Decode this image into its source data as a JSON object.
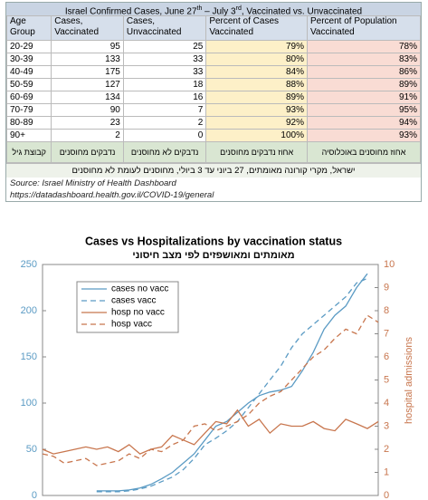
{
  "table": {
    "title": [
      "Israel Confirmed Cases, June 27",
      "th",
      " – July 3",
      "rd",
      ", Vaccinated vs. Unvaccinated"
    ],
    "header": [
      "Age Group",
      "Cases, Vaccinated",
      "Cases, Unvaccinated",
      "Percent of Cases Vaccinated",
      "Percent of Population Vaccinated"
    ],
    "rows": [
      [
        "20-29",
        "95",
        "25",
        "79%",
        "78%"
      ],
      [
        "30-39",
        "133",
        "33",
        "80%",
        "83%"
      ],
      [
        "40-49",
        "175",
        "33",
        "84%",
        "86%"
      ],
      [
        "50-59",
        "127",
        "18",
        "88%",
        "89%"
      ],
      [
        "60-69",
        "134",
        "16",
        "89%",
        "91%"
      ],
      [
        "70-79",
        "90",
        "7",
        "93%",
        "95%"
      ],
      [
        "80-89",
        "23",
        "2",
        "92%",
        "94%"
      ],
      [
        "90+",
        "2",
        "0",
        "100%",
        "93%"
      ]
    ],
    "hebrew_header": [
      "קבוצת גיל",
      "נדבקים מחוסנים",
      "נדבקים לא מחוסנים",
      "אחוז נדבקים מחוסנים",
      "אחוז מחוסנים באוכלוסיה"
    ],
    "hebrew_note": "ישראל, מקרי קורונה מאומתים, 27 ביוני עד 3 ביולי, מחוסנים לעומת לא מחוסנים",
    "source": "Source: Israel Ministry of Health Dashboard",
    "url": "https://datadashboard.health.gov.il/COVID-19/general"
  },
  "chart_data": {
    "type": "line",
    "title": "Cases vs Hospitalizations by vaccination status",
    "subtitle": "מאומתים ומאושפזים לפי מצב חיסוני",
    "y2label": "hospital admissions",
    "legend": "upper left",
    "grid": false,
    "ylim": [
      0,
      250
    ],
    "yticks": [
      0,
      50,
      100,
      150,
      200,
      250
    ],
    "y2lim": [
      0,
      10
    ],
    "y2ticks": [
      0,
      1,
      2,
      3,
      4,
      5,
      6,
      7,
      8,
      9,
      10
    ],
    "series": [
      {
        "name": "cases no vacc",
        "color": "#5b9bc4",
        "dash": false,
        "axis": "y",
        "values": [
          null,
          null,
          null,
          null,
          null,
          5,
          5,
          5,
          6,
          8,
          12,
          18,
          25,
          35,
          45,
          60,
          75,
          80,
          90,
          100,
          108,
          112,
          114,
          118,
          135,
          155,
          180,
          195,
          205,
          225,
          240,
          null
        ]
      },
      {
        "name": "cases vacc",
        "color": "#5b9bc4",
        "dash": true,
        "axis": "y",
        "values": [
          null,
          null,
          null,
          null,
          null,
          4,
          4,
          4,
          5,
          7,
          10,
          15,
          20,
          28,
          40,
          55,
          62,
          70,
          80,
          95,
          110,
          125,
          140,
          160,
          175,
          185,
          195,
          205,
          215,
          230,
          235,
          null
        ]
      },
      {
        "name": "hosp no vacc",
        "color": "#c8764e",
        "dash": false,
        "axis": "y2",
        "values": [
          2.0,
          1.8,
          1.9,
          2.0,
          2.1,
          2.0,
          2.1,
          1.9,
          2.2,
          1.8,
          2.0,
          2.1,
          2.6,
          2.4,
          2.2,
          2.7,
          3.2,
          3.1,
          3.7,
          3.0,
          3.3,
          2.7,
          3.1,
          3.0,
          3.0,
          3.2,
          2.9,
          2.8,
          3.3,
          3.1,
          2.9,
          3.2
        ]
      },
      {
        "name": "hosp vacc",
        "color": "#c8764e",
        "dash": true,
        "axis": "y2",
        "values": [
          1.8,
          1.7,
          1.4,
          1.5,
          1.6,
          1.3,
          1.4,
          1.5,
          1.8,
          1.6,
          2.0,
          1.9,
          2.2,
          2.4,
          3.0,
          3.1,
          2.8,
          3.0,
          3.2,
          3.5,
          4.0,
          4.3,
          4.5,
          5.0,
          5.5,
          6.0,
          6.3,
          6.8,
          7.2,
          7.0,
          7.8,
          7.5
        ]
      }
    ]
  }
}
